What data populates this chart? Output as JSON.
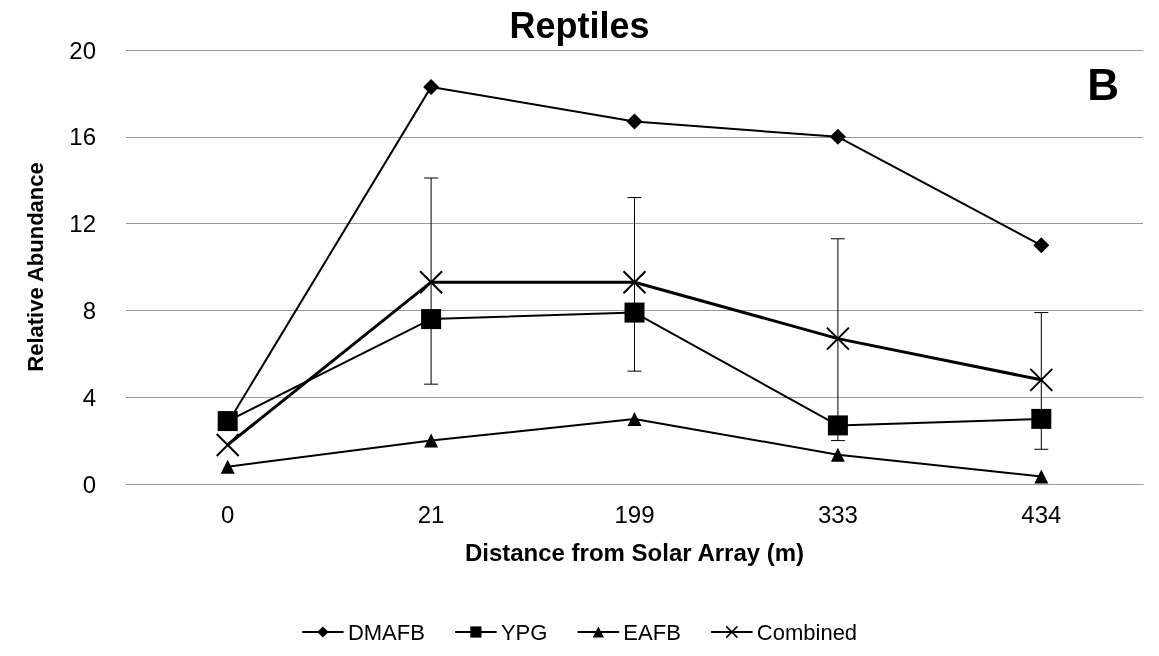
{
  "chart_data": {
    "type": "line",
    "title": "Reptiles",
    "xlabel": "Distance from Solar Array (m)",
    "ylabel": "Relative Abundance",
    "categories": [
      "0",
      "21",
      "199",
      "333",
      "434"
    ],
    "series": [
      {
        "name": "DMAFB",
        "color": "#000000",
        "marker": "diamond",
        "values": [
          2.8,
          18.3,
          16.7,
          16.0,
          11.0
        ]
      },
      {
        "name": "YPG",
        "color": "#000000",
        "marker": "square",
        "values": [
          2.9,
          7.6,
          7.9,
          2.7,
          3.0
        ]
      },
      {
        "name": "EAFB",
        "color": "#000000",
        "marker": "triangle",
        "values": [
          0.8,
          2.0,
          3.0,
          1.35,
          0.35
        ]
      },
      {
        "name": "Combined",
        "color": "#000000",
        "marker": "cross",
        "values": [
          1.8,
          9.3,
          9.3,
          6.7,
          4.8
        ],
        "errors": [
          null,
          [
            4.6,
            14.1
          ],
          [
            5.2,
            13.2
          ],
          [
            2.0,
            11.3
          ],
          [
            1.6,
            7.9
          ]
        ]
      }
    ],
    "ylim": [
      0,
      20
    ],
    "yticks": [
      0,
      4,
      8,
      12,
      16,
      20
    ],
    "grid": "y",
    "legend": "bottom",
    "annotations": [
      "B"
    ]
  }
}
